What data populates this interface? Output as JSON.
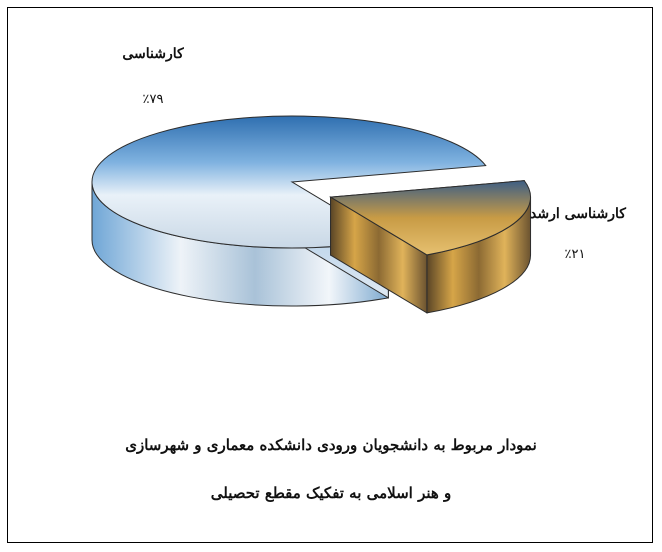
{
  "chart_data": {
    "type": "pie",
    "title": "",
    "categories": [
      "کارشناسی",
      "کارشناسی ارشد"
    ],
    "values": [
      79,
      21
    ],
    "value_labels": [
      "٪۷۹",
      "٪۲۱"
    ],
    "exploded": "کارشناسی ارشد",
    "style": "3d"
  },
  "caption": {
    "line1": "نمودار مربوط به دانشجویان ورودی دانشکده معماری و شهرسازی",
    "line2": "و هنر اسلامی به تفکیک مقطع تحصیلی"
  },
  "colors": {
    "frame": "#000000",
    "slice_main_sky": "#3f86c8",
    "slice_main_snow": "#eef3f8",
    "slice_sub_gold": "#c99a3c",
    "slice_sub_dark": "#4a3a20"
  }
}
